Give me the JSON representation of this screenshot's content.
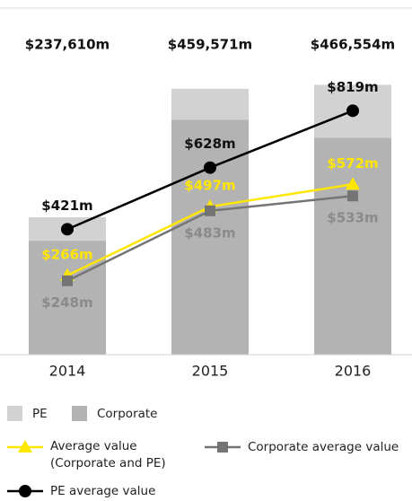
{
  "chart_data": {
    "type": "bar",
    "categories": [
      "2014",
      "2015",
      "2016"
    ],
    "total_labels": [
      "$237,610m",
      "$459,571m",
      "$466,554m"
    ],
    "ylim": [
      0,
      520000
    ],
    "y2lim": [
      0,
      1010
    ],
    "series": [
      {
        "name": "PE",
        "type": "bar",
        "color": "#d2d2d2",
        "values": [
          40610,
          53571,
          91554
        ]
      },
      {
        "name": "Corporate",
        "type": "bar",
        "color": "#b3b3b3",
        "values": [
          197000,
          406000,
          375000
        ]
      },
      {
        "name": "Average value (Corporate and PE)",
        "type": "line",
        "axis": "y2",
        "marker": "triangle",
        "color": "#ffe600",
        "values": [
          266,
          497,
          572
        ],
        "value_labels": [
          "$266m",
          "$497m",
          "$572m"
        ]
      },
      {
        "name": "Corporate average value",
        "type": "line",
        "axis": "y2",
        "marker": "square",
        "color": "#747474",
        "values": [
          248,
          483,
          533
        ],
        "value_labels": [
          "$248m",
          "$483m",
          "$533m"
        ]
      },
      {
        "name": "PE average value",
        "type": "line",
        "axis": "y2",
        "marker": "circle",
        "color": "#000000",
        "values": [
          421,
          628,
          819
        ],
        "value_labels": [
          "$421m",
          "$628m",
          "$819m"
        ]
      }
    ]
  }
}
